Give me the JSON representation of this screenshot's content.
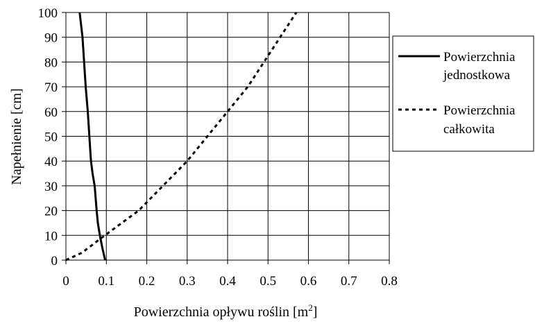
{
  "chart_data": {
    "type": "line",
    "title": "",
    "xlabel": "Powierzchnia opływu roślin [m",
    "xlabel_sup": "2",
    "xlabel_end": "]",
    "ylabel": "Napełnienie [cm]",
    "xlim": [
      0,
      0.8
    ],
    "ylim": [
      0,
      100
    ],
    "x_ticks": [
      "0",
      "0.1",
      "0.2",
      "0.3",
      "0.4",
      "0.5",
      "0.6",
      "0.7",
      "0.8"
    ],
    "y_ticks": [
      "0",
      "10",
      "20",
      "30",
      "40",
      "50",
      "60",
      "70",
      "80",
      "90",
      "100"
    ],
    "grid": true,
    "legend_position": "right",
    "series": [
      {
        "name_lines": [
          "Powierzchnia",
          "jednostkowa"
        ],
        "style": "solid",
        "points": [
          [
            0.097,
            0
          ],
          [
            0.09,
            5
          ],
          [
            0.084,
            10
          ],
          [
            0.079,
            15
          ],
          [
            0.076,
            20
          ],
          [
            0.071,
            30
          ],
          [
            0.066,
            35
          ],
          [
            0.062,
            40
          ],
          [
            0.06,
            45
          ],
          [
            0.058,
            50
          ],
          [
            0.054,
            60
          ],
          [
            0.049,
            70
          ],
          [
            0.045,
            80
          ],
          [
            0.041,
            90
          ],
          [
            0.034,
            100
          ]
        ]
      },
      {
        "name_lines": [
          "Powierzchnia",
          "całkowita"
        ],
        "style": "dashed",
        "points": [
          [
            0,
            0
          ],
          [
            0.04,
            3
          ],
          [
            0.08,
            8
          ],
          [
            0.13,
            14
          ],
          [
            0.18,
            20
          ],
          [
            0.24,
            30
          ],
          [
            0.3,
            40
          ],
          [
            0.35,
            50
          ],
          [
            0.4,
            60
          ],
          [
            0.45,
            70
          ],
          [
            0.49,
            80
          ],
          [
            0.53,
            90
          ],
          [
            0.57,
            100
          ]
        ]
      }
    ]
  }
}
